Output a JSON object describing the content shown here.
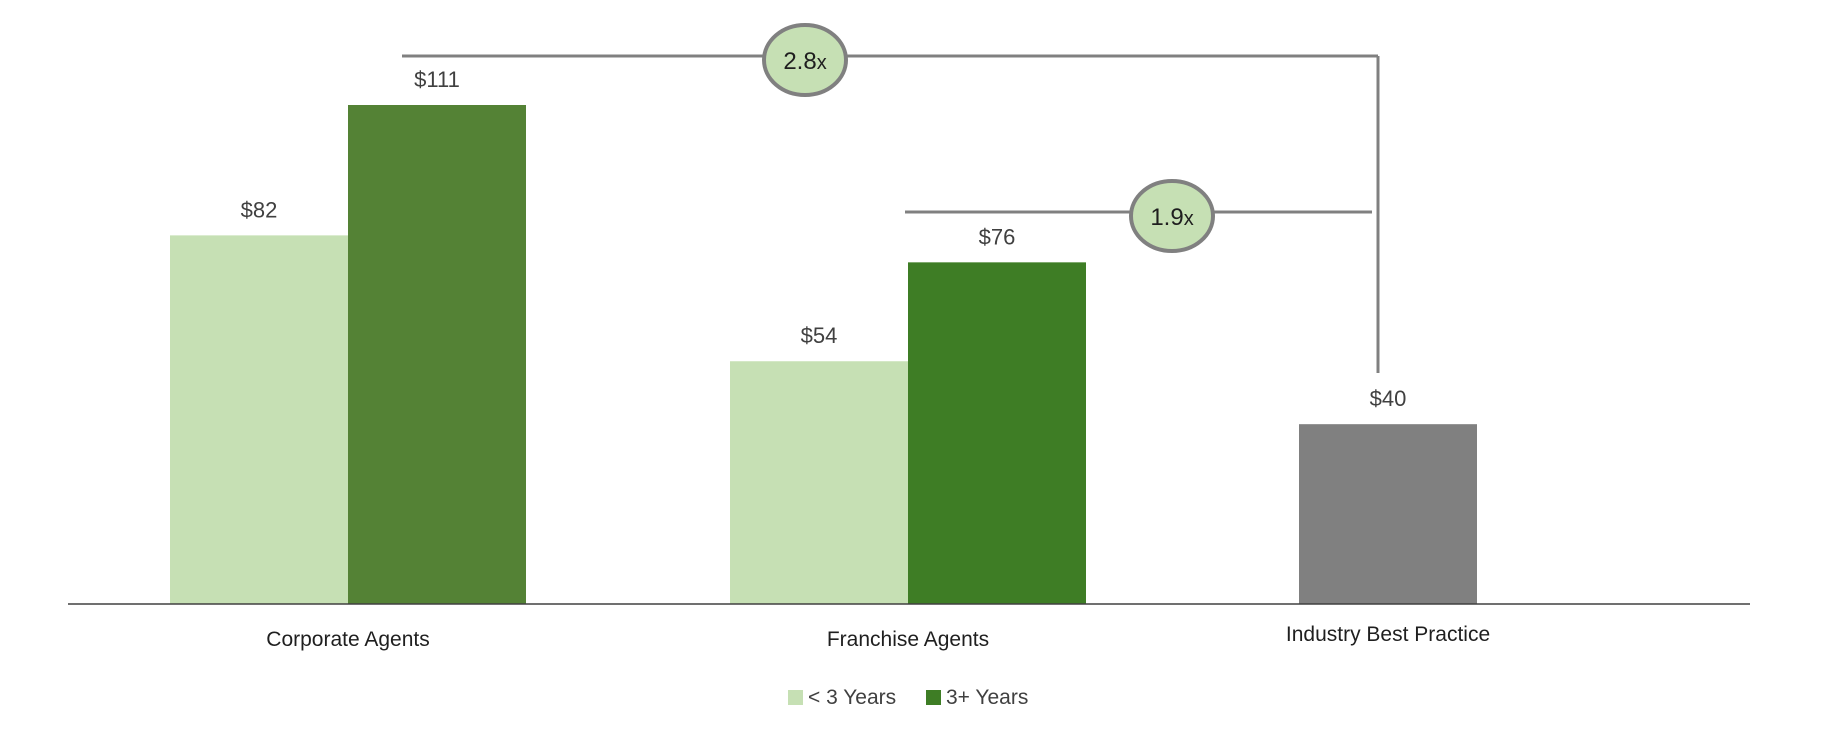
{
  "chart_data": {
    "type": "bar",
    "title": "",
    "xlabel": "",
    "ylabel": "",
    "ylim": [
      0,
      120
    ],
    "grid": false,
    "legend_position": "bottom-center",
    "value_prefix": "$",
    "categories": [
      "Corporate Agents",
      "Franchise Agents",
      "Industry Best Practice"
    ],
    "series": [
      {
        "name": "< 3 Years",
        "color": "#c6e0b4",
        "values": [
          82,
          54,
          null
        ]
      },
      {
        "name": "3+ Years",
        "color": "#548235",
        "values": [
          111,
          76,
          null
        ]
      },
      {
        "name": "",
        "color": "#808080",
        "values": [
          null,
          null,
          40
        ]
      }
    ],
    "bar_colors_override": {
      "series_1_category_1": "#3e7d25"
    },
    "annotations": [
      {
        "label": "2.8x",
        "text_main": "2.8",
        "text_suffix": "x",
        "from": "Corporate Agents / 3+ Years",
        "to": "Industry Best Practice",
        "fill": "#c6e0b4",
        "stroke": "#808080"
      },
      {
        "label": "1.9x",
        "text_main": "1.9",
        "text_suffix": "x",
        "from": "Franchise Agents / 3+ Years",
        "to": "Industry Best Practice",
        "fill": "#c6e0b4",
        "stroke": "#808080"
      }
    ],
    "colors": {
      "axis": "#404040",
      "connector": "#808080",
      "value_text": "#404040",
      "category_text": "#1f1f1f"
    }
  }
}
